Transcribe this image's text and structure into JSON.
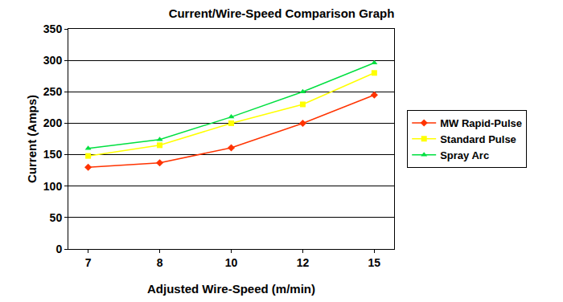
{
  "chart_data": {
    "type": "line",
    "title": "Current/Wire-Speed Comparison Graph",
    "x_label": "Adjusted Wire-Speed (m/min)",
    "y_label": "Current (Amps)",
    "categories": [
      "7",
      "8",
      "10",
      "12",
      "15"
    ],
    "series": [
      {
        "name": "MW Rapid-Pulse",
        "color": "#ff3300",
        "marker": "diamond",
        "values": [
          130,
          137,
          161,
          200,
          245
        ]
      },
      {
        "name": "Standard Pulse",
        "color": "#ffff00",
        "marker": "square",
        "values": [
          148,
          165,
          200,
          230,
          280
        ]
      },
      {
        "name": "Spray Arc",
        "color": "#00e040",
        "marker": "triangle-up",
        "values": [
          160,
          174,
          210,
          250,
          296
        ]
      }
    ],
    "ylim": [
      0,
      350
    ],
    "yticks": [
      0,
      50,
      100,
      150,
      200,
      250,
      300,
      350
    ],
    "grid": true,
    "legend": "right"
  }
}
